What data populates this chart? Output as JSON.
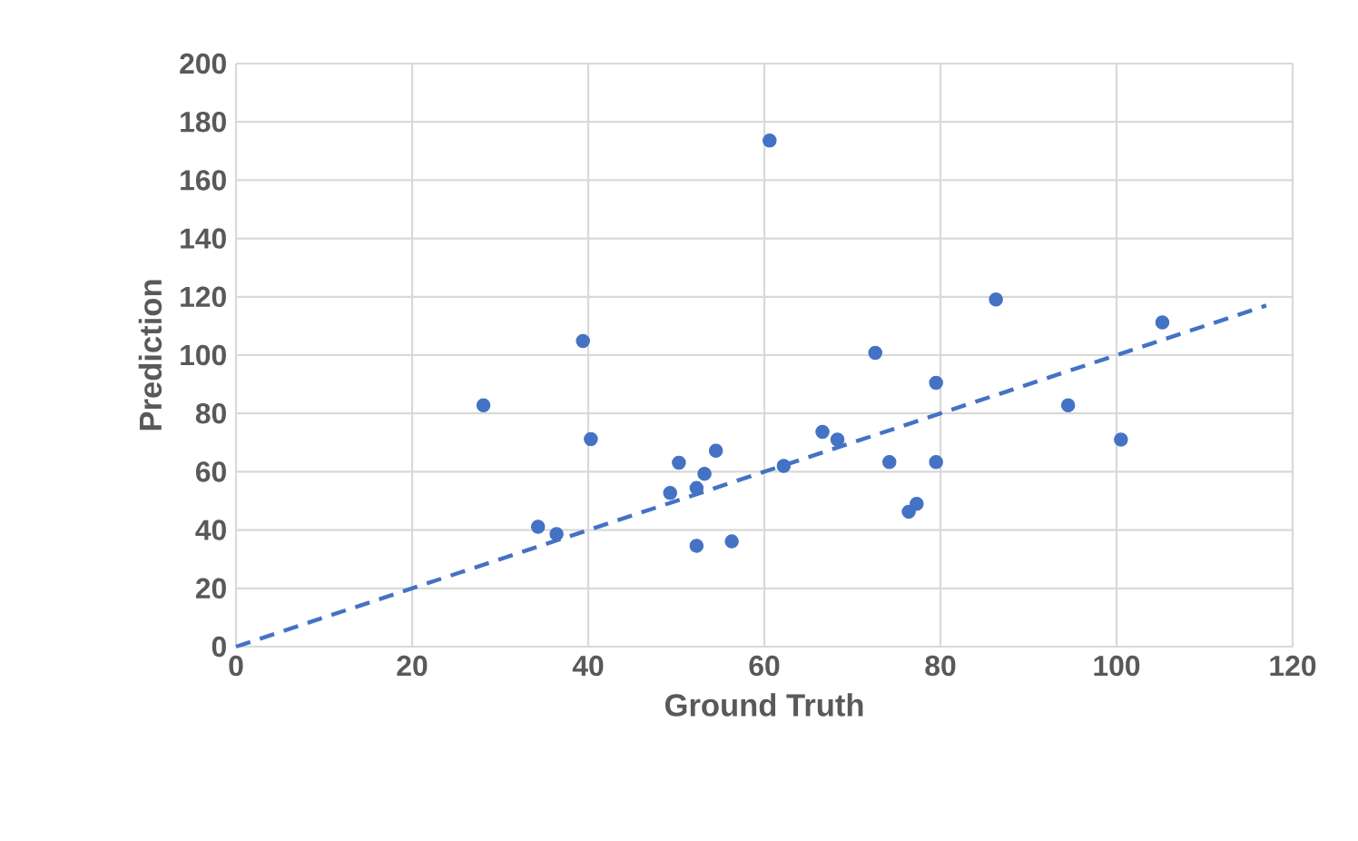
{
  "chart_data": {
    "type": "scatter",
    "xlabel": "Ground Truth",
    "ylabel": "Prediction",
    "xlim": [
      0,
      120
    ],
    "ylim": [
      0,
      200
    ],
    "xticks": [
      0,
      20,
      40,
      60,
      80,
      100,
      120
    ],
    "yticks": [
      0,
      20,
      40,
      60,
      80,
      100,
      120,
      140,
      160,
      180,
      200
    ],
    "grid": true,
    "marker": "circle",
    "series": [
      {
        "color": "#4472c4",
        "x": [
          60.6,
          28.1,
          39.4,
          40.3,
          34.3,
          36.4,
          50.3,
          54.5,
          53.2,
          49.3,
          52.3,
          52.3,
          56.3,
          62.2,
          72.6,
          66.6,
          68.3,
          74.2,
          79.5,
          79.5,
          76.4,
          77.3,
          86.3,
          94.5,
          100.5,
          105.2
        ],
        "values": [
          173.6,
          82.8,
          104.8,
          71.2,
          41.1,
          38.6,
          63.1,
          67.2,
          59.3,
          52.7,
          54.4,
          34.6,
          36.1,
          62.0,
          100.8,
          73.7,
          71.0,
          63.3,
          90.5,
          63.3,
          46.3,
          49.0,
          119.1,
          82.8,
          71.0,
          111.2
        ]
      },
      {
        "type": "line",
        "color": "#4472c4",
        "line_style": "dashed",
        "marker": "none",
        "x": [
          0,
          117
        ],
        "values": [
          0,
          117
        ]
      }
    ]
  }
}
